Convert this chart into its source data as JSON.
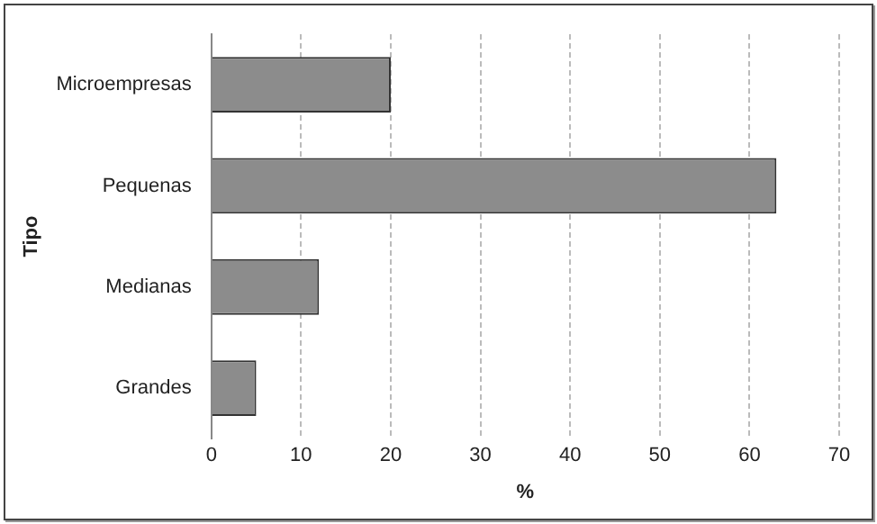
{
  "chart_data": {
    "type": "bar",
    "orientation": "horizontal",
    "xlabel": "%",
    "ylabel": "Tipo",
    "categories": [
      "Microempresas",
      "Pequenas",
      "Medianas",
      "Grandes"
    ],
    "values": [
      20,
      63,
      12,
      5
    ],
    "color": "#8c8c8c",
    "xlim": [
      0,
      70
    ],
    "xticks": [
      0,
      10,
      20,
      30,
      40,
      50,
      60,
      70
    ],
    "grid": "x"
  }
}
